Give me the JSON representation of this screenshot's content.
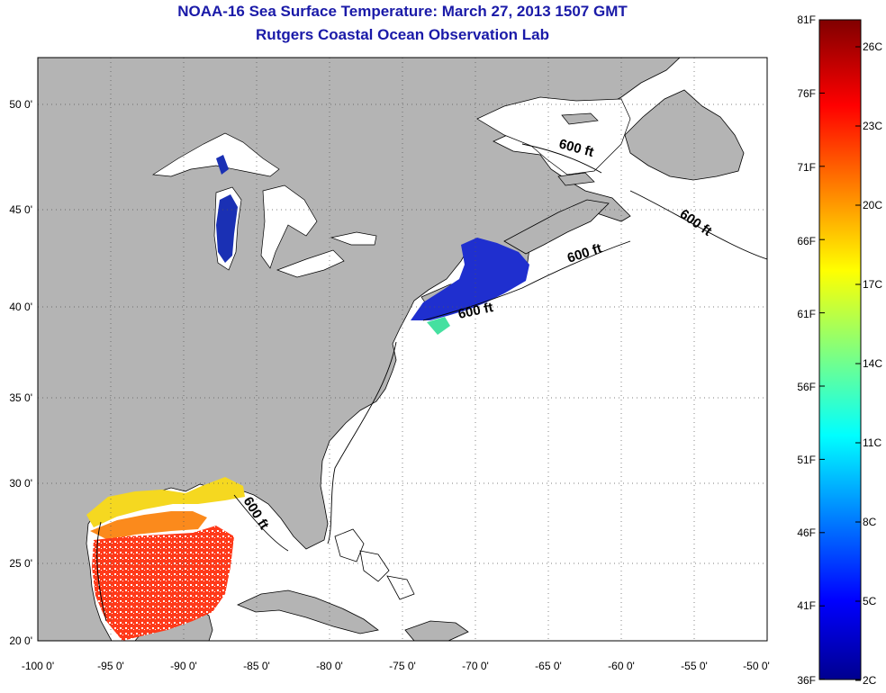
{
  "header": {
    "title": "NOAA-16 Sea Surface Temperature:  March 27, 2013 1507 GMT",
    "subtitle": "Rutgers Coastal Ocean Observation Lab"
  },
  "map": {
    "lon_range": [
      -100,
      -50
    ],
    "lat_range": [
      20,
      52.5
    ],
    "lon_ticks": [
      "-100 0'",
      "-95 0'",
      "-90 0'",
      "-85 0'",
      "-80 0'",
      "-75 0'",
      "-70 0'",
      "-65 0'",
      "-60 0'",
      "-55 0'",
      "-50 0'"
    ],
    "lat_ticks": [
      "50 0'",
      "45 0'",
      "40 0'",
      "35 0'",
      "30 0'",
      "25 0'",
      "20 0'"
    ],
    "depth_labels": [
      "600 ft",
      "600 ft",
      "600 ft",
      "600 ft",
      "600 ft"
    ],
    "land_color": "#b4b4b4",
    "ocean_color": "#ffffff"
  },
  "colorbar": {
    "fahrenheit": [
      "81F",
      "76F",
      "71F",
      "66F",
      "61F",
      "56F",
      "51F",
      "46F",
      "41F",
      "36F"
    ],
    "celsius": [
      "26C",
      "23C",
      "20C",
      "17C",
      "14C",
      "11C",
      "8C",
      "5C",
      "2C"
    ]
  }
}
